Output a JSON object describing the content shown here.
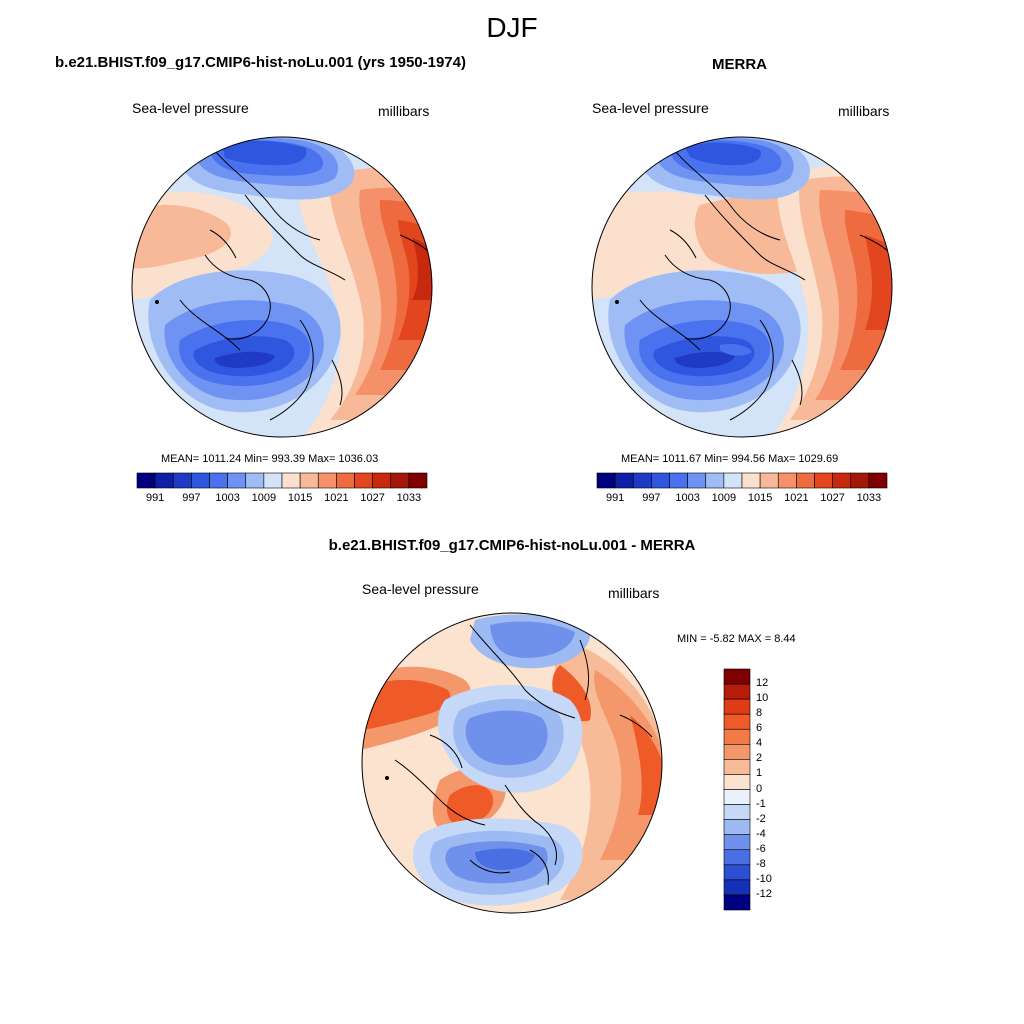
{
  "figure_title": "DJF",
  "panels": [
    {
      "title": "b.e21.BHIST.f09_g17.CMIP6-hist-noLu.001 (yrs 1950-1974)",
      "left_label": "Sea-level pressure",
      "right_label": "millibars",
      "stats_text": "MEAN= 1011.24  Min= 993.39  Max= 1036.03"
    },
    {
      "title": "MERRA",
      "left_label": "Sea-level pressure",
      "right_label": "millibars",
      "stats_text": "MEAN= 1011.67  Min= 994.56  Max= 1029.69"
    },
    {
      "title": "b.e21.BHIST.f09_g17.CMIP6-hist-noLu.001 - MERRA",
      "left_label": "Sea-level pressure",
      "right_label": "millibars",
      "stats_text": "MIN =  -5.82 MAX =   8.44"
    }
  ],
  "chart_data": [
    {
      "type": "heatmap",
      "projection": "north-polar-stereographic",
      "title": "b.e21.BHIST.f09_g17.CMIP6-hist-noLu.001 (yrs 1950-1974)",
      "variable": "Sea-level pressure",
      "units": "millibars",
      "mean": 1011.24,
      "min": 993.39,
      "max": 1036.03,
      "colorbar": {
        "orientation": "horizontal",
        "levels": [
          989,
          991,
          993,
          995,
          997,
          999,
          1001,
          1003,
          1005,
          1007,
          1009,
          1011,
          1013,
          1015,
          1017,
          1019,
          1021,
          1023,
          1025,
          1027,
          1029,
          1031,
          1033,
          1035
        ],
        "tick_labels": [
          "991",
          "997",
          "1003",
          "1009",
          "1015",
          "1021",
          "1027",
          "1033"
        ]
      }
    },
    {
      "type": "heatmap",
      "projection": "north-polar-stereographic",
      "title": "MERRA",
      "variable": "Sea-level pressure",
      "units": "millibars",
      "mean": 1011.67,
      "min": 994.56,
      "max": 1029.69,
      "colorbar": {
        "orientation": "horizontal",
        "tick_labels": [
          "991",
          "997",
          "1003",
          "1009",
          "1015",
          "1021",
          "1027",
          "1033"
        ]
      }
    },
    {
      "type": "heatmap",
      "projection": "north-polar-stereographic",
      "title": "b.e21.BHIST.f09_g17.CMIP6-hist-noLu.001 - MERRA",
      "variable": "Sea-level pressure",
      "units": "millibars",
      "min": -5.82,
      "max": 8.44,
      "colorbar": {
        "orientation": "vertical",
        "tick_labels": [
          "12",
          "10",
          "8",
          "6",
          "4",
          "2",
          "1",
          "0",
          "-1",
          "-2",
          "-4",
          "-6",
          "-8",
          "-10",
          "-12"
        ]
      }
    }
  ],
  "palette": {
    "abs": [
      "#00007e",
      "#0e1fa6",
      "#1f3bc6",
      "#2f56df",
      "#4a72ee",
      "#6f93f3",
      "#a0bcf5",
      "#d3e3f8",
      "#fbe0cd",
      "#f8b998",
      "#f5916a",
      "#ee6a3f",
      "#e3461e",
      "#c7290e",
      "#a51708",
      "#7e0000"
    ],
    "diff": [
      "#7e0000",
      "#b71c0a",
      "#df3b15",
      "#ef5a29",
      "#f27a48",
      "#f4986c",
      "#f7bc97",
      "#fbe3cf",
      "#eaf1fb",
      "#c6d8f7",
      "#9ebaf2",
      "#6f91ec",
      "#4a6fe3",
      "#2a4fd2",
      "#1531b6",
      "#000080"
    ]
  }
}
